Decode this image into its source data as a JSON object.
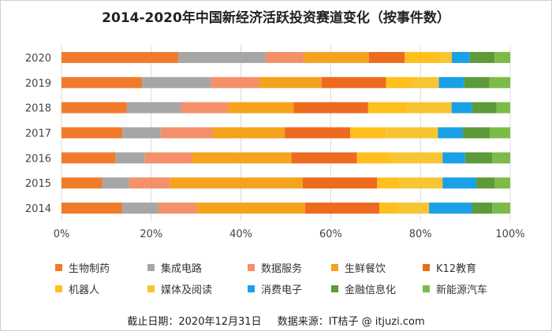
{
  "chart_data": {
    "type": "bar",
    "orientation": "horizontal",
    "stacked": "percent",
    "title": "2014-2020年中国新经济活跃投资赛道变化（按事件数）",
    "categories": [
      "2020",
      "2019",
      "2018",
      "2017",
      "2016",
      "2015",
      "2014"
    ],
    "x_ticks": [
      "0%",
      "20%",
      "40%",
      "60%",
      "80%",
      "100%"
    ],
    "xlim": [
      0,
      100
    ],
    "series": [
      {
        "name": "生物制药",
        "color": "#F07B2B",
        "values": [
          26,
          17.5,
          14.5,
          13.5,
          12,
          9,
          13.5
        ]
      },
      {
        "name": "集成电路",
        "color": "#A6A6A6",
        "values": [
          19.5,
          15,
          12,
          8.5,
          6.5,
          6,
          8
        ]
      },
      {
        "name": "数据服务",
        "color": "#F4906A",
        "values": [
          8.5,
          10.5,
          10.5,
          11.5,
          10.5,
          9,
          8.5
        ]
      },
      {
        "name": "生鲜餐饮",
        "color": "#F5A31C",
        "values": [
          14.5,
          13.5,
          14.5,
          16,
          22,
          29.5,
          24
        ]
      },
      {
        "name": "K12教育",
        "color": "#ED6A1E",
        "values": [
          8,
          14,
          16.5,
          14.5,
          14.5,
          16.5,
          16.5
        ]
      },
      {
        "name": "机器人",
        "color": "#FFC01E",
        "values": [
          8,
          5.5,
          8.5,
          8,
          7,
          5,
          4
        ]
      },
      {
        "name": "媒体及阅读",
        "color": "#F7C531",
        "values": [
          2.5,
          6,
          10,
          11.5,
          12,
          9.5,
          7
        ]
      },
      {
        "name": "消费电子",
        "color": "#1AA0E6",
        "values": [
          4,
          5.5,
          4.5,
          5.5,
          5,
          7.5,
          9.5
        ]
      },
      {
        "name": "金融信息化",
        "color": "#5C9A3A",
        "values": [
          5.5,
          5.5,
          5.5,
          6,
          6,
          4,
          4.5
        ]
      },
      {
        "name": "新能源汽车",
        "color": "#7CBB47",
        "values": [
          3.5,
          4.5,
          3,
          4.5,
          4,
          3.5,
          4
        ]
      }
    ]
  },
  "footer": {
    "date": "截止日期：2020年12月31日",
    "source": "数据来源：IT桔子 @ itjuzi.com"
  }
}
